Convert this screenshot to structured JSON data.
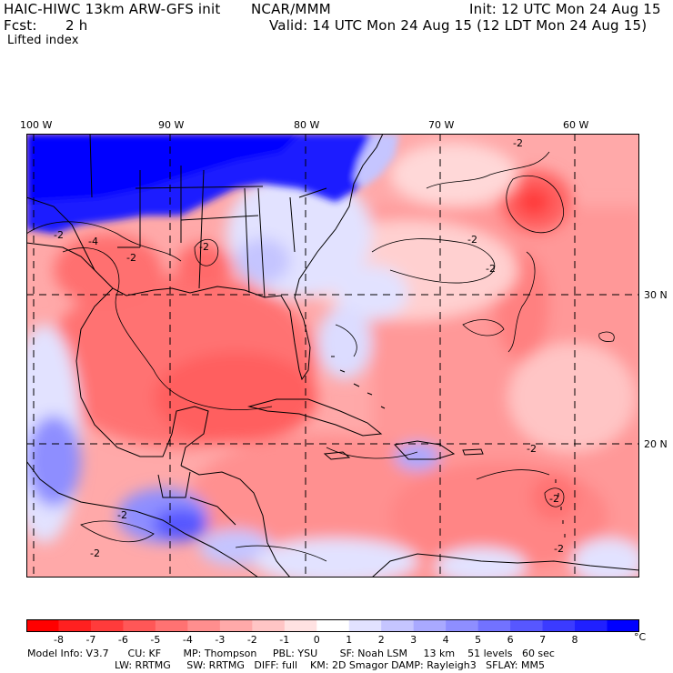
{
  "header": {
    "title": "HAIC-HIWC 13km ARW-GFS init",
    "org": "NCAR/MMM",
    "init": "Init: 12 UTC Mon 24 Aug 15",
    "fcst_label": "Fcst:",
    "fcst_value": "2 h",
    "valid": "Valid: 14 UTC Mon 24 Aug 15 (12 LDT Mon 24 Aug 15)",
    "field": "Lifted index"
  },
  "map": {
    "lon_labels": [
      "100 W",
      "90 W",
      "80 W",
      "70 W",
      "60 W"
    ],
    "lat_labels": [
      "30 N",
      "20 N"
    ],
    "contour_labels": [
      "-2",
      "-2",
      "-2",
      "-4",
      "-2",
      "-2",
      "-2",
      "-2",
      "-2",
      "-2",
      "-2",
      "-2"
    ]
  },
  "colorbar": {
    "ticks": [
      "-8",
      "-7",
      "-6",
      "-5",
      "-4",
      "-3",
      "-2",
      "-1",
      "0",
      "1",
      "2",
      "3",
      "4",
      "5",
      "6",
      "7",
      "8"
    ],
    "unit": "°C",
    "colors": [
      "#ff0000",
      "#ff2020",
      "#ff3b3b",
      "#ff5757",
      "#ff7272",
      "#ff8e8e",
      "#ffa9a9",
      "#ffc5c5",
      "#ffe2e2",
      "#ffffff",
      "#e2e2ff",
      "#c5c5ff",
      "#a9a9ff",
      "#8e8eff",
      "#7272ff",
      "#5757ff",
      "#3b3bff",
      "#2020ff",
      "#0000ff"
    ]
  },
  "model_info": {
    "line1": "Model Info: V3.7      CU: KF       MP: Thompson     PBL: YSU       SF: Noah LSM     13 km    51 levels   60 sec",
    "line2": "LW: RRTMG     SW: RRTMG   DIFF: full    KM: 2D Smagor DAMP: Rayleigh3   SFLAY: MM5"
  }
}
